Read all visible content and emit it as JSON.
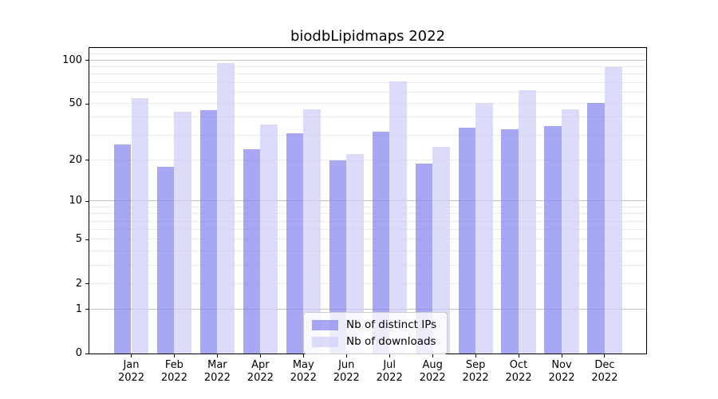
{
  "chart_data": {
    "type": "bar",
    "title": "biodbLipidmaps 2022",
    "categories": [
      "Jan",
      "Feb",
      "Mar",
      "Apr",
      "May",
      "Jun",
      "Jul",
      "Aug",
      "Sep",
      "Oct",
      "Nov",
      "Dec"
    ],
    "category_year": "2022",
    "series": [
      {
        "name": "Nb of distinct IPs",
        "color": "#8282F0B3",
        "values": [
          26,
          18,
          45,
          24,
          31,
          20,
          32,
          19,
          34,
          33,
          35,
          51
        ]
      },
      {
        "name": "Nb of downloads",
        "color": "#CDCDF8B3",
        "values": [
          55,
          44,
          96,
          36,
          46,
          22,
          72,
          25,
          51,
          62,
          46,
          90
        ]
      }
    ],
    "yscale": "log(1+x)",
    "ylim": [
      0,
      122
    ],
    "y_tick_labels": [
      "0",
      "1",
      "2",
      "5",
      "10",
      "20",
      "50",
      "100"
    ],
    "y_ticks": [
      0,
      1,
      2,
      5,
      10,
      20,
      50,
      100
    ],
    "y_major_gridlines": [
      1,
      10,
      100
    ],
    "y_minor_gridlines": [
      2,
      3,
      4,
      5,
      6,
      7,
      8,
      9,
      20,
      30,
      40,
      50,
      60,
      70,
      80,
      90,
      110,
      120
    ],
    "xlabel": "",
    "ylabel": "",
    "grid": "both",
    "legend_position": "lower center"
  },
  "colors": {
    "background": "#ffffff",
    "spine": "#000000",
    "grid_major": "#c2c2c2",
    "grid_minor": "#ececec",
    "text": "#000000"
  }
}
